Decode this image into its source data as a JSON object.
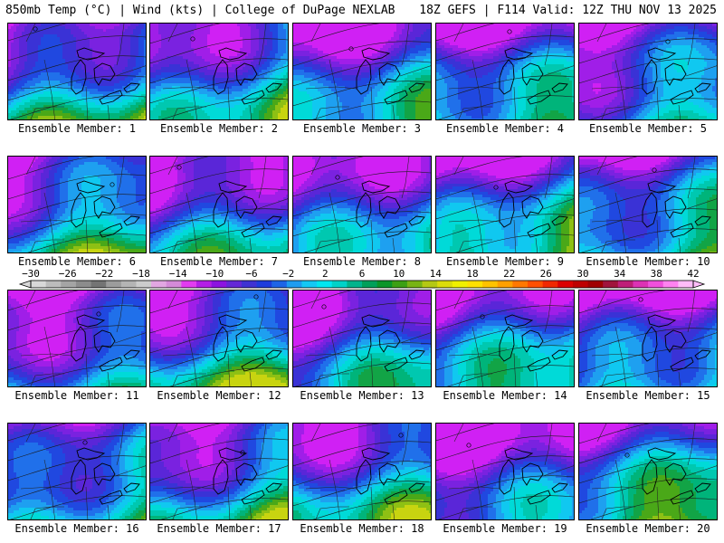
{
  "header": {
    "left": "850mb Temp (°C) | Wind (kts) | College of DuPage NEXLAB",
    "right": "18Z GEFS | F114 Valid: 12Z THU NOV 13 2025"
  },
  "colorbar": {
    "labels": [
      "-30",
      "-26",
      "-22",
      "-18",
      "-14",
      "-10",
      "-6",
      "-2",
      "2",
      "6",
      "10",
      "14",
      "18",
      "22",
      "26",
      "30",
      "34",
      "38",
      "42"
    ],
    "colors": [
      "#d8d8d8",
      "#bcbcbc",
      "#a4a4a4",
      "#8c8c8c",
      "#747474",
      "#9c9c9c",
      "#b4b4b4",
      "#cccccc",
      "#e2a6e2",
      "#d48ad8",
      "#e23cf0",
      "#b41ee6",
      "#8c14e0",
      "#6428d6",
      "#3f32d2",
      "#1e3cdc",
      "#1e64e6",
      "#1e9cf0",
      "#14c8f4",
      "#00e6f0",
      "#00d2c8",
      "#00b48c",
      "#00a05a",
      "#0a9628",
      "#3ca014",
      "#78b414",
      "#b4c814",
      "#dcdc0a",
      "#f0f000",
      "#ffe100",
      "#ffc300",
      "#ffa000",
      "#ff7800",
      "#ff5000",
      "#f02800",
      "#dc0000",
      "#be0000",
      "#a00000",
      "#a0143c",
      "#be1e78",
      "#dc32b4",
      "#f050dc",
      "#ff82f0",
      "#ffbcf8"
    ]
  },
  "members": [
    {
      "label": "Ensemble Member: 1"
    },
    {
      "label": "Ensemble Member: 2"
    },
    {
      "label": "Ensemble Member: 3"
    },
    {
      "label": "Ensemble Member: 4"
    },
    {
      "label": "Ensemble Member: 5"
    },
    {
      "label": "Ensemble Member: 6"
    },
    {
      "label": "Ensemble Member: 7"
    },
    {
      "label": "Ensemble Member: 8"
    },
    {
      "label": "Ensemble Member: 9"
    },
    {
      "label": "Ensemble Member: 10"
    },
    {
      "label": "Ensemble Member: 11"
    },
    {
      "label": "Ensemble Member: 12"
    },
    {
      "label": "Ensemble Member: 13"
    },
    {
      "label": "Ensemble Member: 14"
    },
    {
      "label": "Ensemble Member: 15"
    },
    {
      "label": "Ensemble Member: 16"
    },
    {
      "label": "Ensemble Member: 17"
    },
    {
      "label": "Ensemble Member: 18"
    },
    {
      "label": "Ensemble Member: 19"
    },
    {
      "label": "Ensemble Member: 20"
    }
  ]
}
